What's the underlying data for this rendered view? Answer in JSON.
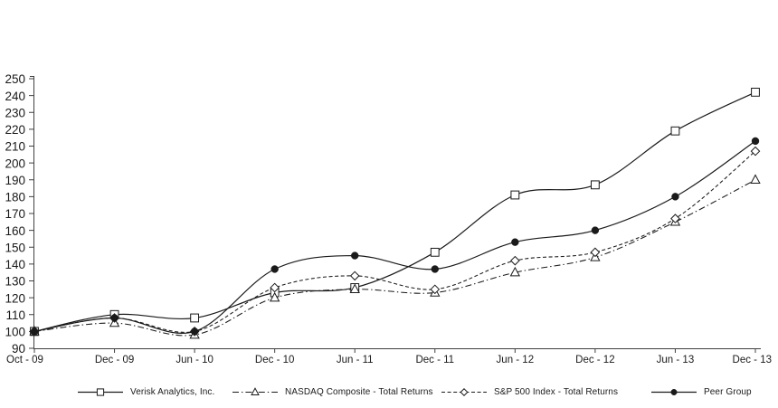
{
  "chart_data": {
    "type": "line",
    "title": "",
    "categories": [
      "Oct - 09",
      "Dec - 09",
      "Jun - 10",
      "Dec - 10",
      "Jun - 11",
      "Dec - 11",
      "Jun - 12",
      "Dec - 12",
      "Jun - 13",
      "Dec - 13"
    ],
    "series": [
      {
        "name": "Verisk Analytics, Inc.",
        "values": [
          100,
          110,
          108,
          123,
          126,
          147,
          181,
          187,
          219,
          242
        ],
        "marker": "square-open",
        "line": "solid"
      },
      {
        "name": "NASDAQ Composite - Total Returns",
        "values": [
          100,
          105,
          98,
          120,
          125,
          123,
          135,
          144,
          165,
          190
        ],
        "marker": "triangle-open",
        "line": "dash-dot"
      },
      {
        "name": "S&P 500 Index - Total Returns",
        "values": [
          100,
          108,
          100,
          126,
          133,
          125,
          142,
          147,
          167,
          207
        ],
        "marker": "diamond-open",
        "line": "dashed"
      },
      {
        "name": "Peer Group",
        "values": [
          100,
          108,
          100,
          137,
          145,
          137,
          153,
          160,
          180,
          213
        ],
        "marker": "circle-filled",
        "line": "solid"
      }
    ],
    "xlabel": "",
    "ylabel": "",
    "ylim": [
      90,
      250
    ],
    "ytick_step": 10,
    "yticks": [
      90,
      100,
      110,
      120,
      130,
      140,
      150,
      160,
      170,
      180,
      190,
      200,
      210,
      220,
      230,
      240,
      250
    ],
    "grid": false,
    "smooth_lines": true,
    "legend_position": "bottom",
    "colors": {
      "line": "#1a1a1a",
      "axis": "#404040",
      "text": "#1a1a1a",
      "background": "#ffffff",
      "marker_fill_open": "#ffffff"
    }
  }
}
